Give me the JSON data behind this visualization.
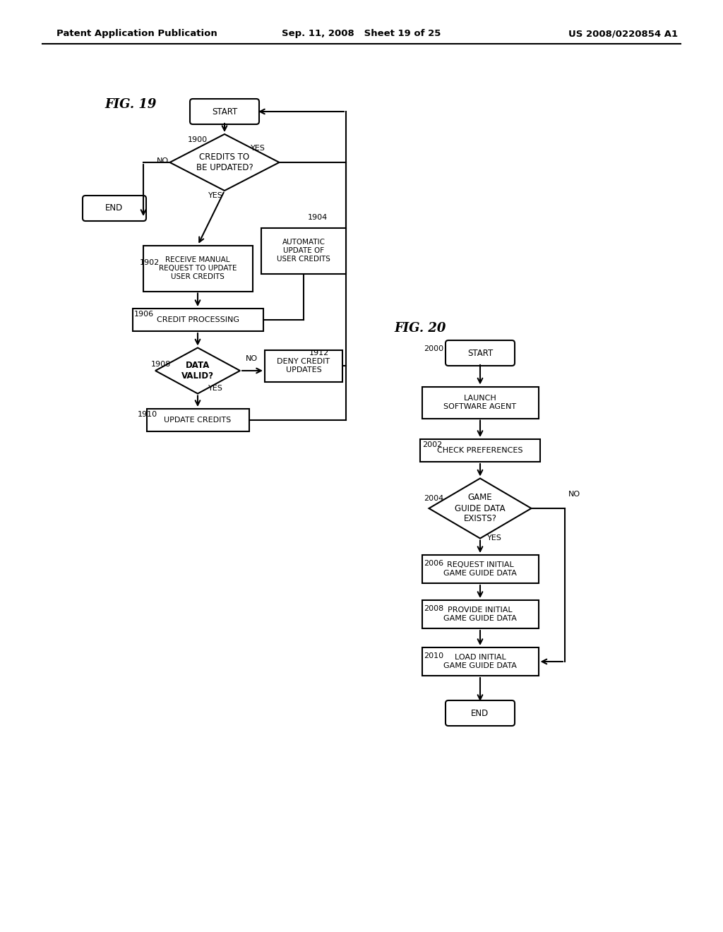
{
  "bg_color": "#ffffff",
  "header_left": "Patent Application Publication",
  "header_mid": "Sep. 11, 2008   Sheet 19 of 25",
  "header_right": "US 2008/0220854 A1"
}
